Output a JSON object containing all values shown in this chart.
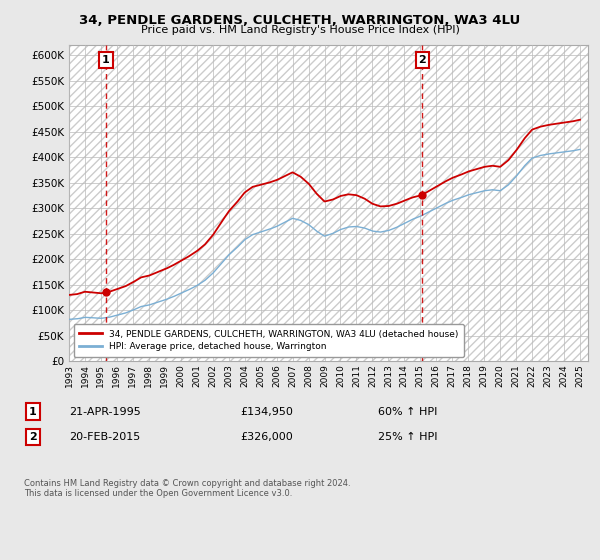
{
  "title": "34, PENDLE GARDENS, CULCHETH, WARRINGTON, WA3 4LU",
  "subtitle": "Price paid vs. HM Land Registry's House Price Index (HPI)",
  "legend_label_red": "34, PENDLE GARDENS, CULCHETH, WARRINGTON, WA3 4LU (detached house)",
  "legend_label_blue": "HPI: Average price, detached house, Warrington",
  "sale1_date": "21-APR-1995",
  "sale1_price": 134950,
  "sale1_pct": "60% ↑ HPI",
  "sale2_date": "20-FEB-2015",
  "sale2_price": 326000,
  "sale2_pct": "25% ↑ HPI",
  "footnote": "Contains HM Land Registry data © Crown copyright and database right 2024.\nThis data is licensed under the Open Government Licence v3.0.",
  "ylim": [
    0,
    620000
  ],
  "yticks": [
    0,
    50000,
    100000,
    150000,
    200000,
    250000,
    300000,
    350000,
    400000,
    450000,
    500000,
    550000,
    600000
  ],
  "bg_color": "#e8e8e8",
  "plot_bg_color": "#ffffff",
  "red_color": "#cc0000",
  "blue_color": "#7bafd4",
  "sale_marker_color": "#cc0000",
  "grid_color": "#bbbbbb",
  "sale1_x": 1995.31,
  "sale2_x": 2015.12,
  "xlim_left": 1993.0,
  "xlim_right": 2025.5
}
